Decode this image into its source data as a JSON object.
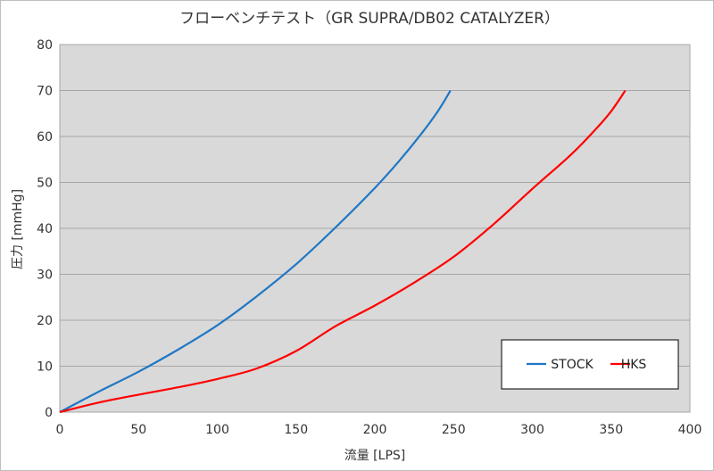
{
  "chart_data": {
    "type": "line",
    "title": "フローベンチテスト（GR SUPRA/DB02 CATALYZER）",
    "xlabel": "流量 [LPS]",
    "ylabel": "圧力 [mmHg]",
    "xlim": [
      0,
      400
    ],
    "ylim": [
      0,
      80
    ],
    "xticks": [
      0,
      50,
      100,
      150,
      200,
      250,
      300,
      350,
      400
    ],
    "yticks": [
      0,
      10,
      20,
      30,
      40,
      50,
      60,
      70,
      80
    ],
    "grid": "horizontal",
    "plot_background": "#d9d9d9",
    "legend_position": "bottom-right",
    "series": [
      {
        "name": "STOCK",
        "color": "#1f77c4",
        "x": [
          0,
          25,
          50,
          75,
          100,
          125,
          150,
          175,
          200,
          215,
          230,
          240,
          248
        ],
        "y": [
          0,
          4.5,
          8.8,
          13.6,
          18.9,
          25.2,
          32.2,
          40.2,
          48.8,
          54.5,
          60.8,
          65.5,
          70
        ]
      },
      {
        "name": "HKS",
        "color": "#ff0000",
        "x": [
          0,
          25,
          50,
          75,
          100,
          125,
          150,
          175,
          200,
          225,
          250,
          275,
          300,
          325,
          340,
          350,
          359
        ],
        "y": [
          0,
          2.1,
          3.8,
          5.4,
          7.2,
          9.5,
          13.3,
          18.7,
          23.2,
          28.2,
          33.8,
          40.8,
          48.6,
          56.2,
          61.5,
          65.5,
          70
        ]
      }
    ]
  }
}
